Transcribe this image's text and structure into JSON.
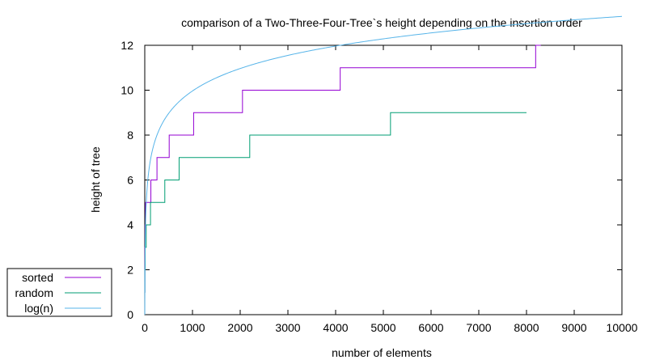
{
  "chart_data": {
    "type": "line",
    "title": "comparison of a Two-Three-Four-Tree`s height depending on the insertion order",
    "xlabel": "number of elements",
    "ylabel": "height of tree",
    "xlim": [
      0,
      10000
    ],
    "ylim": [
      0,
      12
    ],
    "xticks": [
      0,
      1000,
      2000,
      3000,
      4000,
      5000,
      6000,
      7000,
      8000,
      9000,
      10000
    ],
    "yticks": [
      0,
      2,
      4,
      6,
      8,
      10,
      12
    ],
    "grid": false,
    "legend_position": "outside-bottom-left",
    "series": [
      {
        "name": "sorted",
        "color": "#9400d3",
        "style": "step",
        "points": [
          [
            1,
            1
          ],
          [
            2,
            2
          ],
          [
            4,
            3
          ],
          [
            8,
            4
          ],
          [
            16,
            5
          ],
          [
            32,
            5
          ],
          [
            64,
            5
          ],
          [
            128,
            6
          ],
          [
            256,
            7
          ],
          [
            512,
            8
          ],
          [
            1024,
            9
          ],
          [
            2048,
            10
          ],
          [
            4096,
            11
          ],
          [
            8192,
            12
          ],
          [
            8300,
            12
          ]
        ]
      },
      {
        "name": "random",
        "color": "#009e73",
        "style": "step",
        "points": [
          [
            1,
            1
          ],
          [
            3,
            2
          ],
          [
            10,
            3
          ],
          [
            30,
            4
          ],
          [
            120,
            5
          ],
          [
            420,
            6
          ],
          [
            720,
            7
          ],
          [
            2200,
            8
          ],
          [
            5150,
            9
          ],
          [
            8000,
            9
          ]
        ]
      },
      {
        "name": "log(n)",
        "color": "#56b4e9",
        "style": "curve",
        "function": "log2(n)/log2(4)*2",
        "x_range": [
          1,
          10000
        ]
      }
    ]
  }
}
